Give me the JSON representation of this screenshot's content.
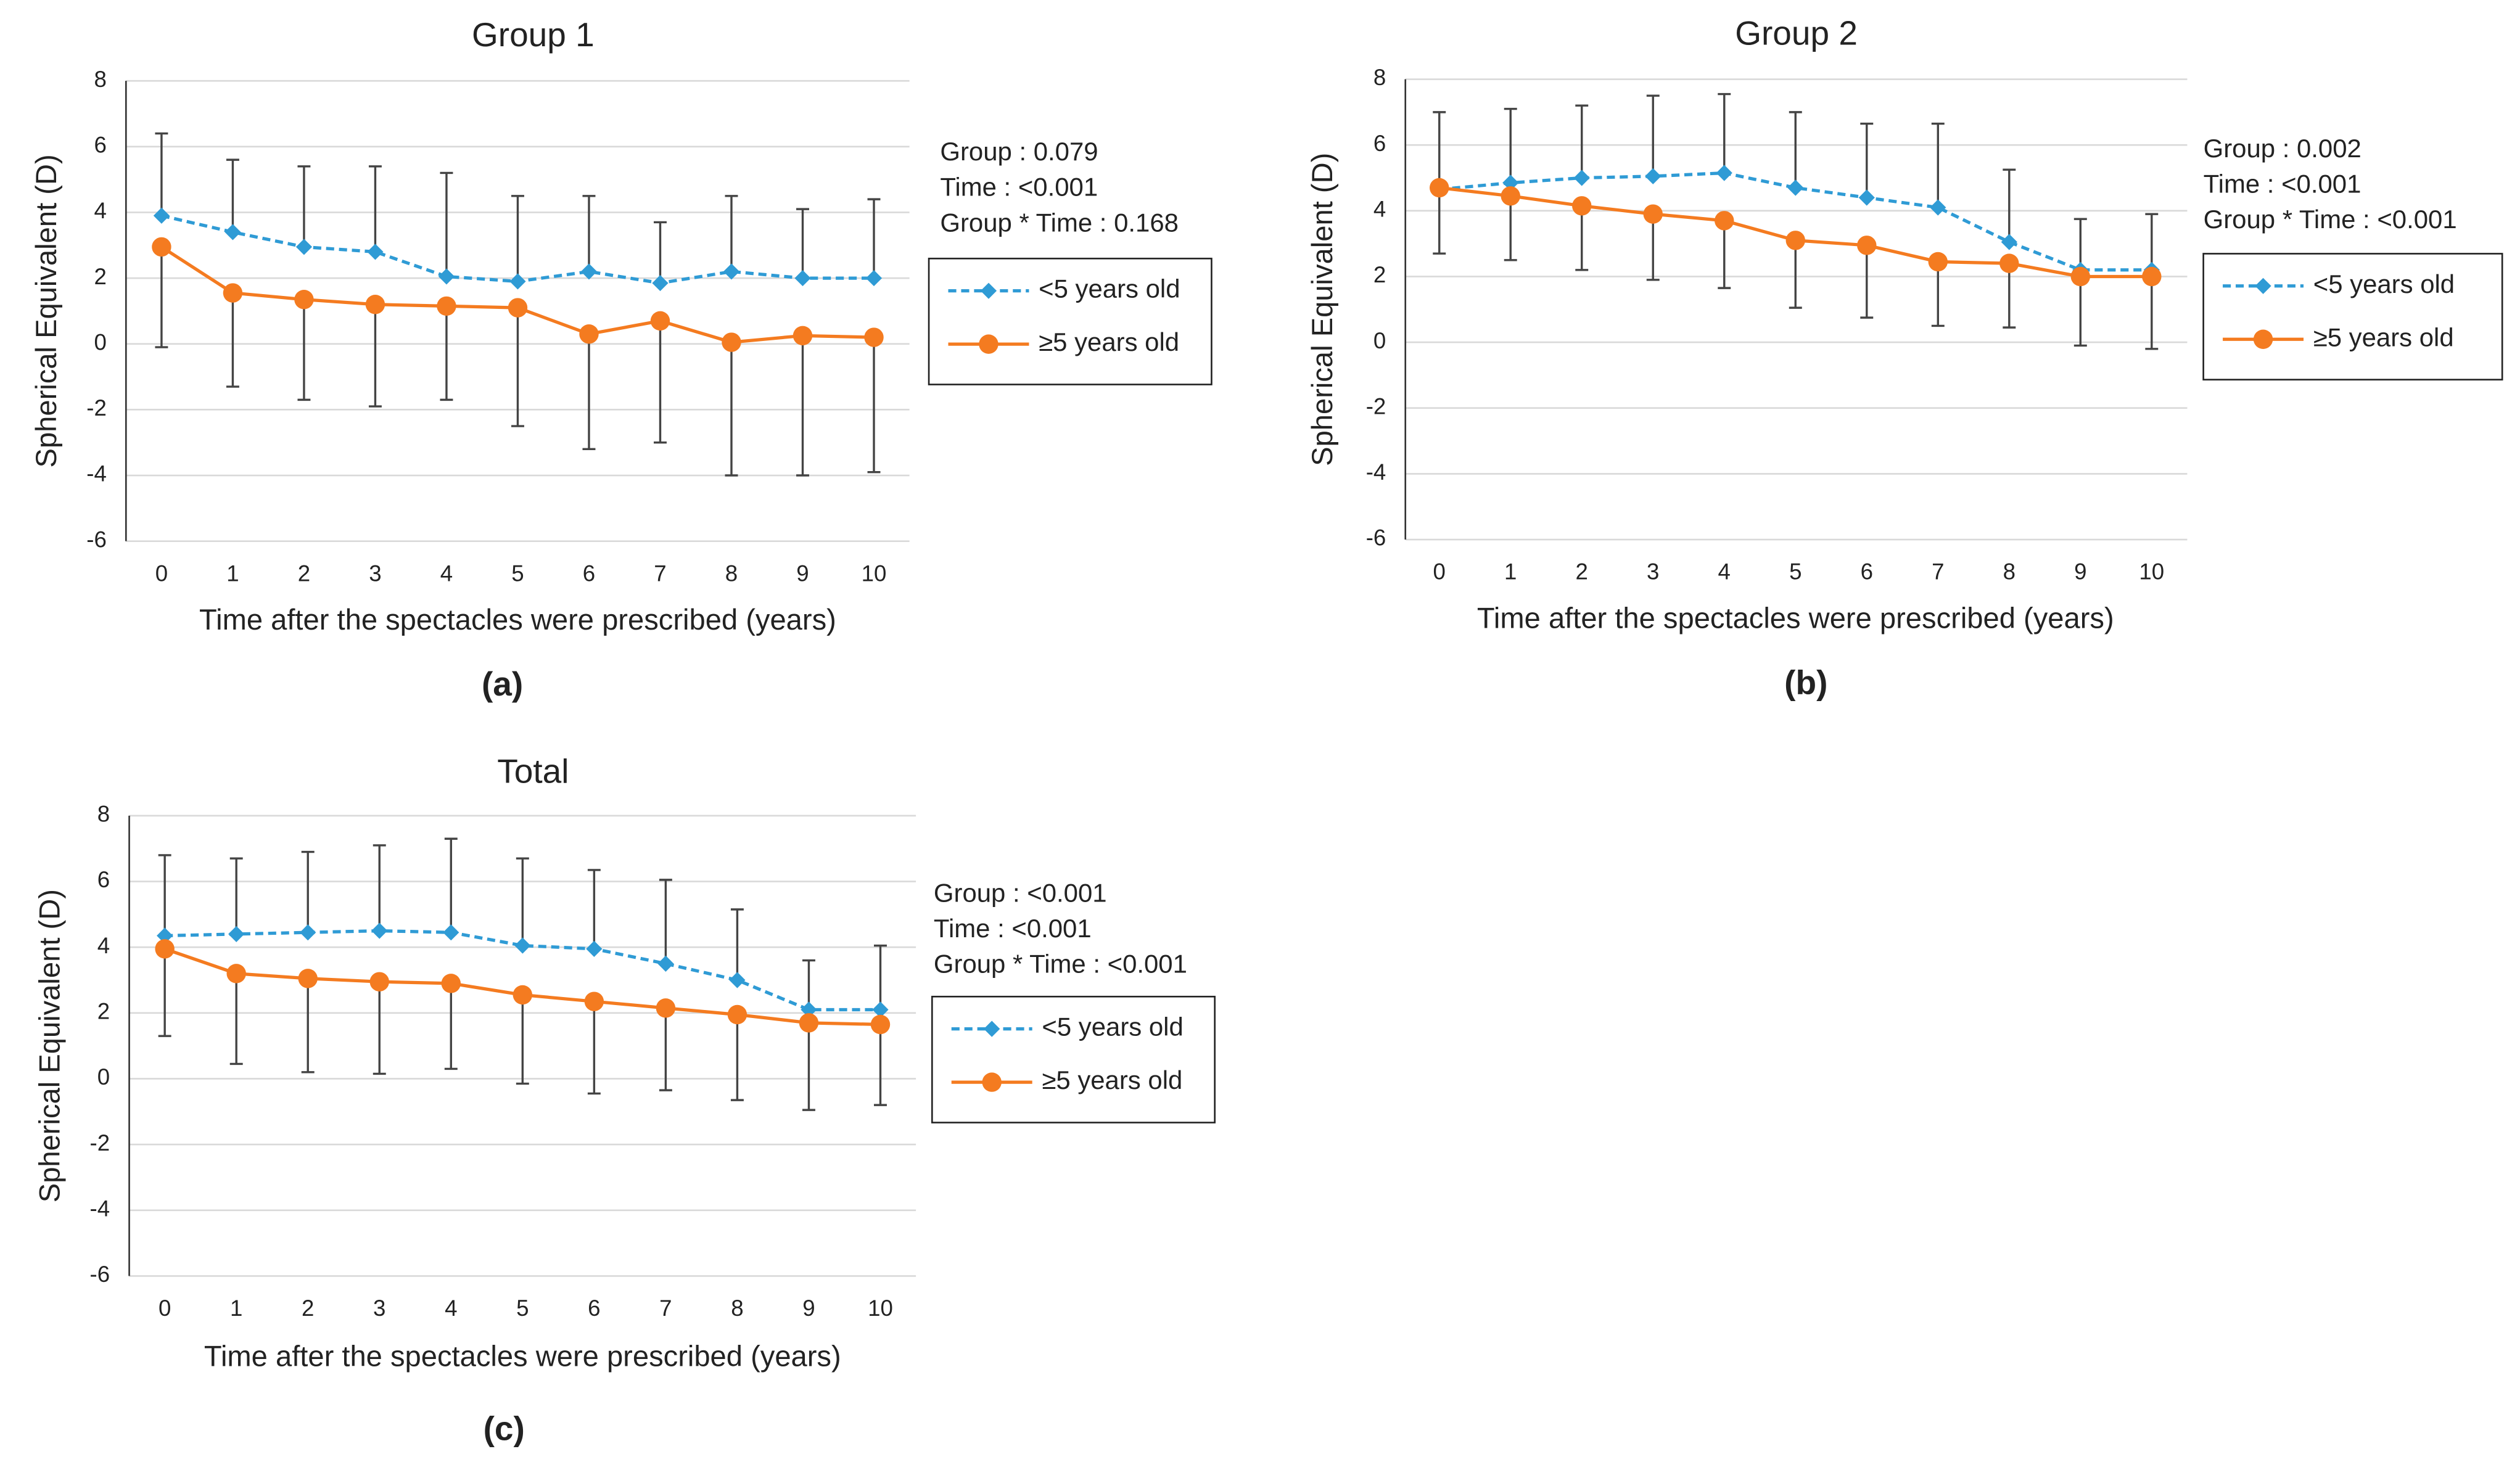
{
  "chart_data": [
    {
      "type": "line",
      "title": "Group 1",
      "panel_label": "(a)",
      "x_label": "Time after the spectacles were prescribed (years)",
      "y_label": "Spherical Equivalent (D)",
      "x": [
        0,
        1,
        2,
        3,
        4,
        5,
        6,
        7,
        8,
        9,
        10
      ],
      "xlim": [
        -0.5,
        10.5
      ],
      "xticks": [
        0,
        1,
        2,
        3,
        4,
        5,
        6,
        7,
        8,
        9,
        10
      ],
      "ylim": [
        -6,
        8
      ],
      "yticks": [
        -6,
        -4,
        -2,
        0,
        2,
        4,
        6,
        8
      ],
      "grid": true,
      "annotations": [
        "Group : 0.079",
        "Time : <0.001",
        "Group * Time : 0.168"
      ],
      "series": [
        {
          "name": "<5 years old",
          "color": "#2f9bd5",
          "marker": "diamond",
          "linestyle": "dashed",
          "error_direction": "up",
          "values": [
            3.9,
            3.4,
            2.95,
            2.8,
            2.05,
            1.9,
            2.2,
            1.85,
            2.2,
            2.0,
            2.0
          ],
          "errors": [
            2.5,
            2.2,
            2.45,
            2.6,
            3.15,
            2.6,
            2.3,
            1.85,
            2.3,
            2.1,
            2.4
          ]
        },
        {
          "name": "≥5 years old",
          "color": "#f47b20",
          "marker": "circle",
          "linestyle": "solid",
          "error_direction": "down",
          "values": [
            2.95,
            1.55,
            1.35,
            1.2,
            1.15,
            1.1,
            0.3,
            0.7,
            0.05,
            0.25,
            0.2
          ],
          "errors": [
            3.05,
            2.85,
            3.05,
            3.1,
            2.85,
            3.6,
            3.5,
            3.7,
            4.05,
            4.25,
            4.1
          ]
        }
      ]
    },
    {
      "type": "line",
      "title": "Group 2",
      "panel_label": "(b)",
      "x_label": "Time after the spectacles were prescribed (years)",
      "y_label": "Spherical Equivalent (D)",
      "x": [
        0,
        1,
        2,
        3,
        4,
        5,
        6,
        7,
        8,
        9,
        10
      ],
      "xlim": [
        -0.5,
        10.5
      ],
      "xticks": [
        0,
        1,
        2,
        3,
        4,
        5,
        6,
        7,
        8,
        9,
        10
      ],
      "ylim": [
        -6,
        8
      ],
      "yticks": [
        -6,
        -4,
        -2,
        0,
        2,
        4,
        6,
        8
      ],
      "grid": true,
      "annotations": [
        "Group : 0.002",
        "Time : <0.001",
        "Group * Time : <0.001"
      ],
      "series": [
        {
          "name": "<5 years old",
          "color": "#2f9bd5",
          "marker": "diamond",
          "linestyle": "dashed",
          "error_direction": "up",
          "values": [
            4.65,
            4.85,
            5.0,
            5.05,
            5.15,
            4.7,
            4.4,
            4.1,
            3.05,
            2.2,
            2.2
          ],
          "errors": [
            2.35,
            2.25,
            2.2,
            2.45,
            2.4,
            2.3,
            2.25,
            2.55,
            2.2,
            1.55,
            1.7
          ]
        },
        {
          "name": "≥5 years old",
          "color": "#f47b20",
          "marker": "circle",
          "linestyle": "solid",
          "error_direction": "down",
          "values": [
            4.7,
            4.45,
            4.15,
            3.9,
            3.7,
            3.1,
            2.95,
            2.45,
            2.4,
            2.0,
            2.0
          ],
          "errors": [
            2.0,
            1.95,
            1.95,
            2.0,
            2.05,
            2.05,
            2.2,
            1.95,
            1.95,
            2.1,
            2.2
          ]
        }
      ]
    },
    {
      "type": "line",
      "title": "Total",
      "panel_label": "(c)",
      "x_label": "Time after the spectacles were prescribed (years)",
      "y_label": "Spherical Equivalent (D)",
      "x": [
        0,
        1,
        2,
        3,
        4,
        5,
        6,
        7,
        8,
        9,
        10
      ],
      "xlim": [
        -0.5,
        10.5
      ],
      "xticks": [
        0,
        1,
        2,
        3,
        4,
        5,
        6,
        7,
        8,
        9,
        10
      ],
      "ylim": [
        -6,
        8
      ],
      "yticks": [
        -6,
        -4,
        -2,
        0,
        2,
        4,
        6,
        8
      ],
      "grid": true,
      "annotations": [
        "Group : <0.001",
        "Time : <0.001",
        "Group * Time : <0.001"
      ],
      "series": [
        {
          "name": "<5 years old",
          "color": "#2f9bd5",
          "marker": "diamond",
          "linestyle": "dashed",
          "error_direction": "up",
          "values": [
            4.35,
            4.4,
            4.45,
            4.5,
            4.45,
            4.05,
            3.95,
            3.5,
            3.0,
            2.1,
            2.1
          ],
          "errors": [
            2.45,
            2.3,
            2.45,
            2.6,
            2.85,
            2.65,
            2.4,
            2.55,
            2.15,
            1.5,
            1.95
          ]
        },
        {
          "name": "≥5 years old",
          "color": "#f47b20",
          "marker": "circle",
          "linestyle": "solid",
          "error_direction": "down",
          "values": [
            3.95,
            3.2,
            3.05,
            2.95,
            2.9,
            2.55,
            2.35,
            2.15,
            1.95,
            1.7,
            1.65
          ],
          "errors": [
            2.65,
            2.75,
            2.85,
            2.8,
            2.6,
            2.7,
            2.8,
            2.5,
            2.6,
            2.65,
            2.45
          ]
        }
      ]
    }
  ]
}
